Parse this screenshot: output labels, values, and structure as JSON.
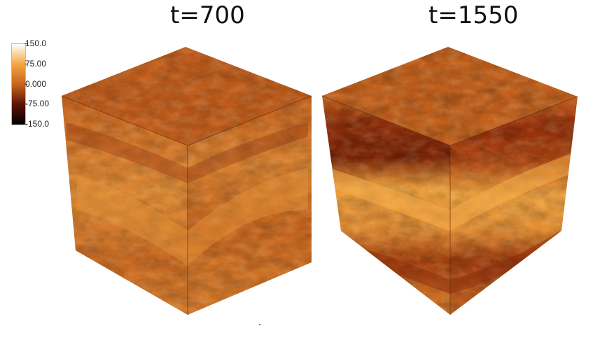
{
  "panels": [
    {
      "title": "t=700"
    },
    {
      "title": "t=1550"
    }
  ],
  "colorbar": {
    "ticks": [
      "150.0",
      "75.00",
      "0.000",
      "-75.00",
      "-150.0"
    ],
    "colors": [
      "#ffffff",
      "#f4a640",
      "#c8651c",
      "#5a1405",
      "#000000"
    ]
  }
}
